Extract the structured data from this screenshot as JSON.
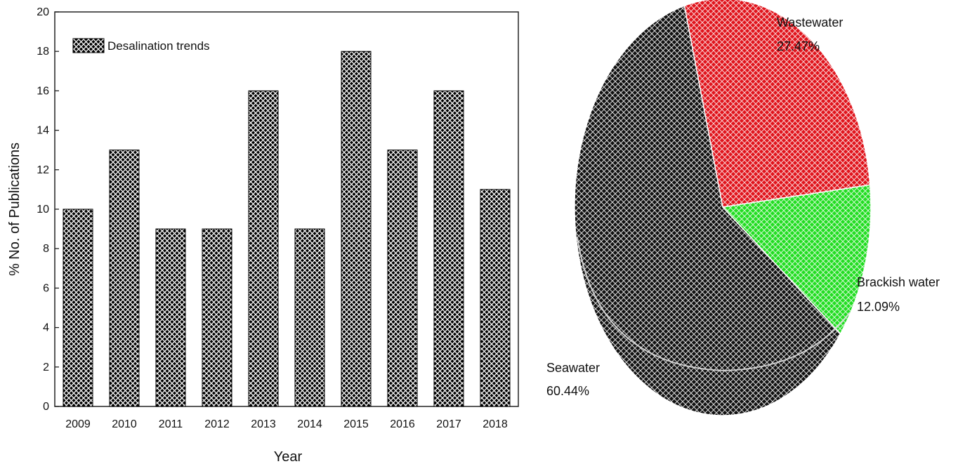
{
  "chart_data": [
    {
      "type": "bar",
      "categories": [
        "2009",
        "2010",
        "2011",
        "2012",
        "2013",
        "2014",
        "2015",
        "2016",
        "2017",
        "2018"
      ],
      "series": [
        {
          "name": "Desalination trends",
          "values": [
            10,
            13,
            9,
            9,
            16,
            9,
            18,
            13,
            16,
            11
          ]
        }
      ],
      "xlabel": "Year",
      "ylabel": "% No. of Publications",
      "ylim": [
        0,
        20
      ],
      "yticks": [
        "0",
        "2",
        "4",
        "6",
        "8",
        "10",
        "12",
        "14",
        "16",
        "18",
        "20"
      ],
      "grid": false,
      "legend": "top-left",
      "fill": "cross-hatch",
      "colors": {
        "bar": "#000000",
        "hatch": "#ffffff"
      }
    },
    {
      "type": "pie",
      "slices": [
        {
          "label": "Wastewater",
          "pct_label": "27.47%",
          "value": 27.47,
          "color": "#e0141c"
        },
        {
          "label": "Brackish water",
          "pct_label": "12.09%",
          "value": 12.09,
          "color": "#22dd22"
        },
        {
          "label": "Seawater",
          "pct_label": "60.44%",
          "value": 60.44,
          "color": "#111111"
        }
      ],
      "fill": "cross-hatch"
    }
  ]
}
